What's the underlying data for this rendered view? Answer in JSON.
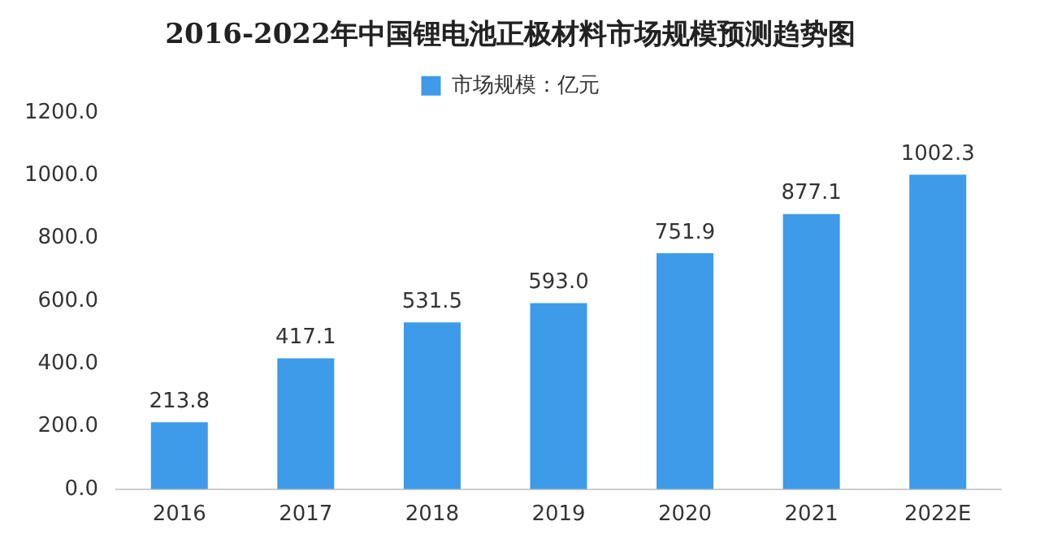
{
  "chart_data": {
    "type": "bar",
    "title": "2016-2022年中国锂电池正极材料市场规模预测趋势图",
    "categories": [
      "2016",
      "2017",
      "2018",
      "2019",
      "2020",
      "2021",
      "2022E"
    ],
    "series": [
      {
        "name": "市场规模：亿元",
        "color": "#3d9be9",
        "values": [
          213.8,
          417.1,
          531.5,
          593.0,
          751.9,
          877.1,
          1002.3
        ],
        "value_labels": [
          "213.8",
          "417.1",
          "531.5",
          "593.0",
          "751.9",
          "877.1",
          "1002.3"
        ]
      }
    ],
    "ylim": [
      0,
      1200
    ],
    "yticks": [
      {
        "value": 0,
        "label": "0.0"
      },
      {
        "value": 200,
        "label": "200.0"
      },
      {
        "value": 400,
        "label": "400.0"
      },
      {
        "value": 600,
        "label": "600.0"
      },
      {
        "value": 800,
        "label": "800.0"
      },
      {
        "value": 1000,
        "label": "1000.0"
      },
      {
        "value": 1200,
        "label": "1200.0"
      }
    ],
    "grid": false,
    "legend": "top"
  }
}
